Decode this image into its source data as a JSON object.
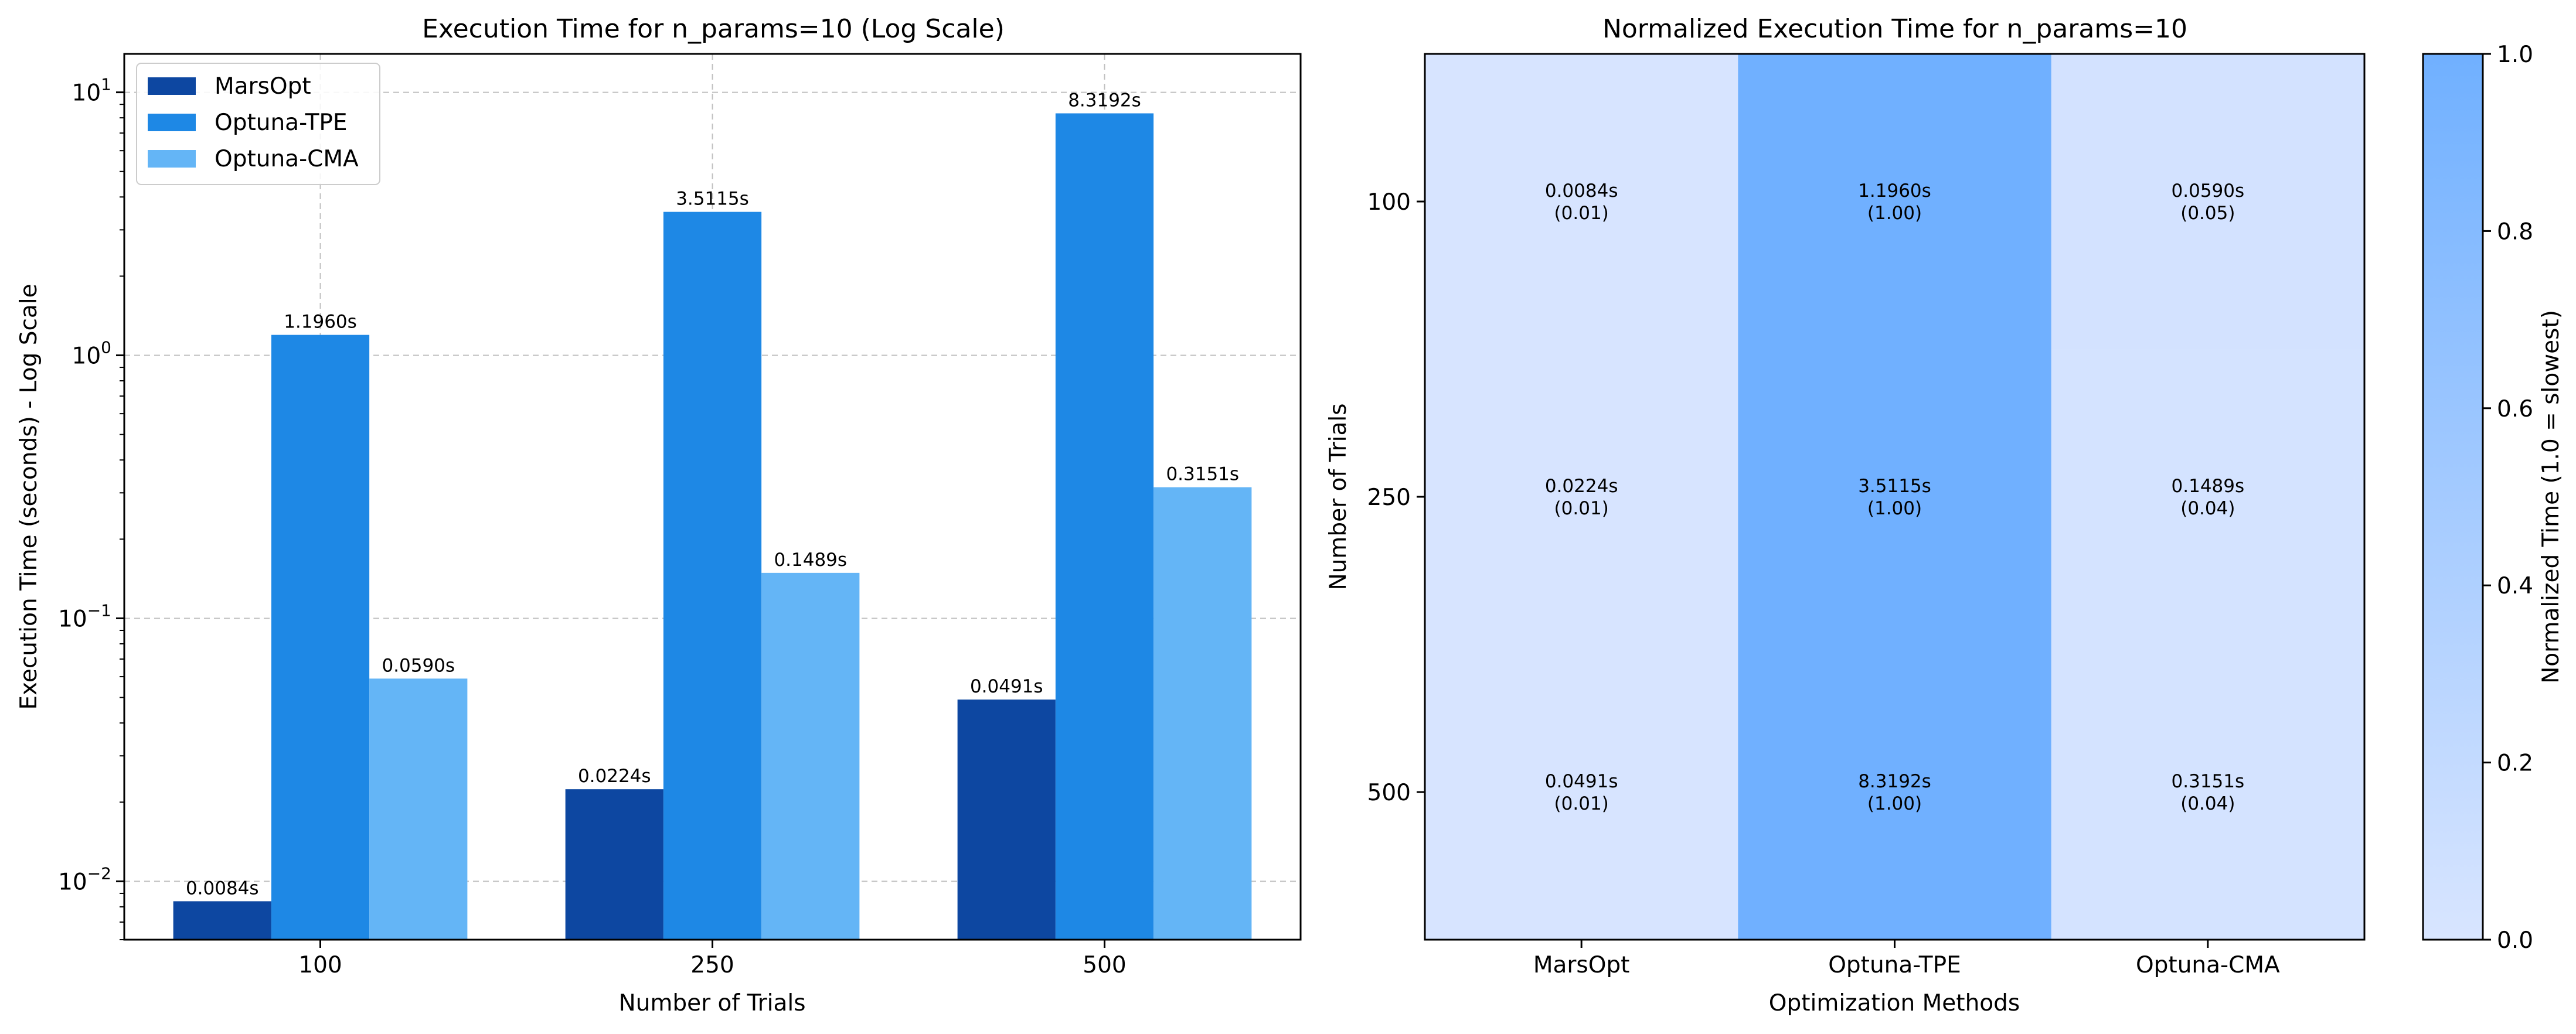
{
  "chart_data": [
    {
      "type": "bar",
      "title": "Execution Time for n_params=10 (Log Scale)",
      "xlabel": "Number of Trials",
      "ylabel": "Execution Time (seconds) - Log Scale",
      "yscale": "log",
      "ylim": [
        0.006,
        14
      ],
      "yticks": [
        {
          "value": 0.01,
          "base": "10",
          "exp": "−2"
        },
        {
          "value": 0.1,
          "base": "10",
          "exp": "−1"
        },
        {
          "value": 1,
          "base": "10",
          "exp": "0"
        },
        {
          "value": 10,
          "base": "10",
          "exp": "1"
        }
      ],
      "grid": true,
      "legend_position": "top-left",
      "categories": [
        "100",
        "250",
        "500"
      ],
      "series": [
        {
          "name": "MarsOpt",
          "color": "#0d47a1",
          "values": [
            0.0084,
            0.0224,
            0.0491
          ],
          "labels": [
            "0.0084s",
            "0.0224s",
            "0.0491s"
          ]
        },
        {
          "name": "Optuna-TPE",
          "color": "#1e88e5",
          "values": [
            1.196,
            3.5115,
            8.3192
          ],
          "labels": [
            "1.1960s",
            "3.5115s",
            "8.3192s"
          ]
        },
        {
          "name": "Optuna-CMA",
          "color": "#64b5f6",
          "values": [
            0.059,
            0.1489,
            0.3151
          ],
          "labels": [
            "0.0590s",
            "0.1489s",
            "0.3151s"
          ]
        }
      ]
    },
    {
      "type": "heatmap",
      "title": "Normalized Execution Time for n_params=10",
      "xlabel": "Optimization Methods",
      "ylabel": "Number of Trials",
      "columns": [
        "MarsOpt",
        "Optuna-TPE",
        "Optuna-CMA"
      ],
      "rows": [
        "100",
        "250",
        "500"
      ],
      "values": [
        [
          0.01,
          1.0,
          0.05
        ],
        [
          0.01,
          1.0,
          0.04
        ],
        [
          0.01,
          1.0,
          0.04
        ]
      ],
      "cell_text": [
        [
          [
            "0.0084s",
            "(0.01)"
          ],
          [
            "1.1960s",
            "(1.00)"
          ],
          [
            "0.0590s",
            "(0.05)"
          ]
        ],
        [
          [
            "0.0224s",
            "(0.01)"
          ],
          [
            "3.5115s",
            "(1.00)"
          ],
          [
            "0.1489s",
            "(0.04)"
          ]
        ],
        [
          [
            "0.0491s",
            "(0.01)"
          ],
          [
            "8.3192s",
            "(1.00)"
          ],
          [
            "0.3151s",
            "(0.04)"
          ]
        ]
      ],
      "colormap": {
        "low": "#d8e5ff",
        "high": "#70b0ff"
      },
      "colorbar": {
        "label": "Normalized Time (1.0 = slowest)",
        "range": [
          0,
          1
        ],
        "ticks": [
          "0.0",
          "0.2",
          "0.4",
          "0.6",
          "0.8",
          "1.0"
        ]
      }
    }
  ]
}
